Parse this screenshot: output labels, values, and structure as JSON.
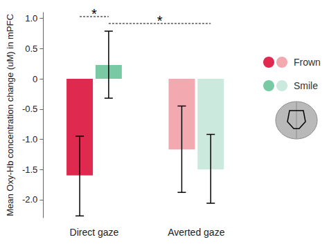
{
  "chart_data": {
    "type": "bar",
    "y_label": "Mean Oxy-Hb concentration change (uM) in mPFC",
    "categories": [
      "Direct gaze",
      "Averted gaze"
    ],
    "series": [
      {
        "name": "Frown",
        "colors": [
          "#e0294f",
          "#f2a9b0"
        ],
        "values": [
          -1.6,
          -1.17
        ],
        "error_bars": [
          [
            -2.27,
            -0.95
          ],
          [
            -1.88,
            -0.45
          ]
        ]
      },
      {
        "name": "Smile",
        "colors": [
          "#79c9a5",
          "#cbe9dc"
        ],
        "values": [
          0.23,
          -1.5
        ],
        "error_bars": [
          [
            -0.32,
            0.79
          ],
          [
            -2.06,
            -0.92
          ]
        ]
      }
    ],
    "ylim": [
      -2.3,
      1.1
    ],
    "yticks": [
      {
        "value": 1,
        "label": "1.0"
      },
      0.5,
      0,
      -0.5,
      {
        "value": -1,
        "label": "-1.0"
      },
      -1.5,
      {
        "value": -2,
        "label": "-2.0"
      }
    ],
    "grid": false,
    "legend": "right",
    "annotations": [
      {
        "text": "*",
        "from": [
          "Direct gaze",
          "Frown"
        ],
        "to": [
          "Direct gaze",
          "Smile"
        ]
      },
      {
        "text": "*",
        "from": [
          "Direct gaze",
          "Smile"
        ],
        "to": [
          "Averted gaze",
          "Smile"
        ]
      }
    ]
  }
}
